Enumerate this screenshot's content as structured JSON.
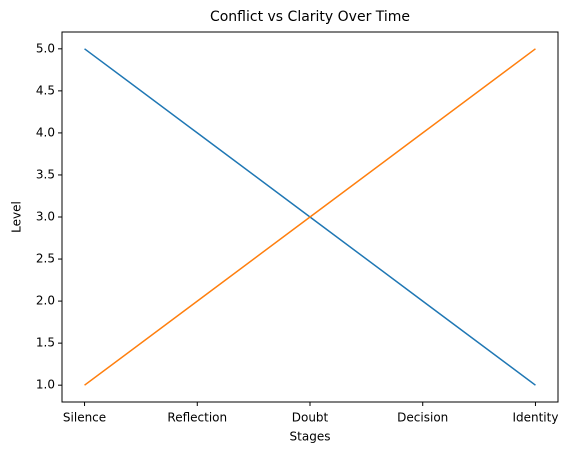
{
  "chart_data": {
    "type": "line",
    "title": "Conflict vs Clarity Over Time",
    "x_label": "Stages",
    "y_label": "Level",
    "categories": [
      "Silence",
      "Reflection",
      "Doubt",
      "Decision",
      "Identity"
    ],
    "series": [
      {
        "color": "#1f77b4",
        "values": [
          5,
          4,
          3,
          2,
          1
        ]
      },
      {
        "color": "#ff7f0e",
        "values": [
          1,
          2,
          3,
          4,
          5
        ]
      }
    ],
    "ylim": [
      0.8,
      5.2
    ],
    "yticks": [
      {
        "value": 1,
        "label": "1.0"
      },
      {
        "value": 1.5,
        "label": "1.5"
      },
      {
        "value": 2,
        "label": "2.0"
      },
      {
        "value": 2.5,
        "label": "2.5"
      },
      {
        "value": 3,
        "label": "3.0"
      },
      {
        "value": 3.5,
        "label": "3.5"
      },
      {
        "value": 4,
        "label": "4.0"
      },
      {
        "value": 4.5,
        "label": "4.5"
      },
      {
        "value": 5,
        "label": "5.0"
      }
    ],
    "grid": false
  }
}
